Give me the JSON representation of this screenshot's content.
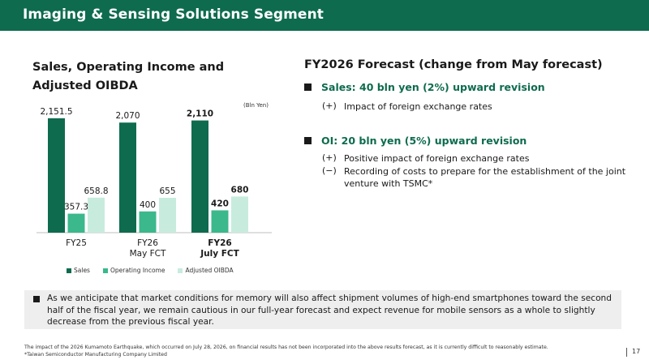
{
  "header": {
    "title": "Imaging & Sensing Solutions Segment"
  },
  "chart_title": "Sales, Operating Income and Adjusted OIBDA",
  "unit": "(Bln Yen)",
  "chart_data": {
    "type": "bar",
    "title": "Sales, Operating Income and Adjusted OIBDA",
    "categories": [
      "FY25",
      "FY26\nMay FCT",
      "FY26\nJuly FCT"
    ],
    "category_bold": [
      false,
      false,
      true
    ],
    "series": [
      {
        "name": "Sales",
        "values": [
          2151.5,
          2070,
          2110
        ],
        "labels": [
          "2,151.5",
          "2,070",
          "2,110"
        ],
        "color": "#0e6b4e"
      },
      {
        "name": "Operating Income",
        "values": [
          357.3,
          400,
          420
        ],
        "labels": [
          "357.3",
          "400",
          "420"
        ],
        "color": "#3bb88c"
      },
      {
        "name": "Adjusted OIBDA",
        "values": [
          658.8,
          655,
          680
        ],
        "labels": [
          "658.8",
          "655",
          "680"
        ],
        "color": "#c7ecde"
      }
    ],
    "legend_position": "bottom",
    "grid": false
  },
  "forecast": {
    "title": "FY2026 Forecast (change from May forecast)",
    "sales_head": "Sales: 40 bln yen (2%) upward revision",
    "sales_items": [
      {
        "sign": "(+)",
        "text": "Impact of foreign exchange rates"
      }
    ],
    "oi_head": "OI: 20 bln yen (5%) upward revision",
    "oi_items": [
      {
        "sign": "(+)",
        "text": "Positive impact of foreign exchange rates"
      },
      {
        "sign": "(−)",
        "text": "Recording of costs to prepare for the establishment of the joint venture with TSMC*"
      }
    ]
  },
  "note": "As we anticipate that market conditions for memory will also affect shipment volumes of high-end smartphones toward the second half of the fiscal year, we remain cautious in our full-year forecast and expect revenue for mobile sensors as a whole to slightly decrease from the previous fiscal year.",
  "footnotes": {
    "line1": "The impact of the 2026 Kumamoto Earthquake, which occurred on July 28, 2026, on financial results has not been incorporated into the above results forecast, as it is currently difficult to reasonably estimate.",
    "line2": "*Taiwan Semiconductor Manufacturing Company Limited"
  },
  "page_number": "17"
}
